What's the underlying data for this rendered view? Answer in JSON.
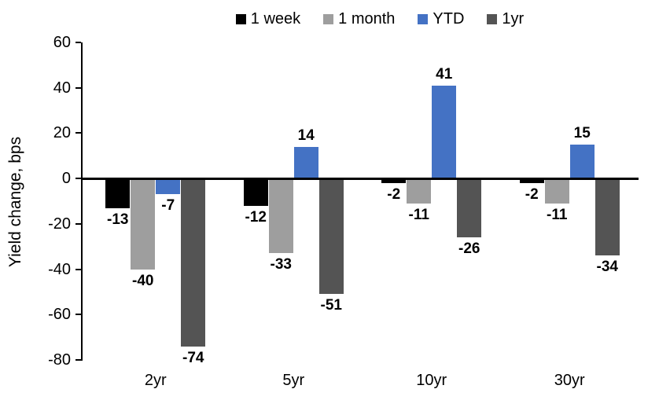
{
  "chart_data": {
    "type": "bar",
    "title": "",
    "ylabel": "Yield change, bps",
    "xlabel": "",
    "categories": [
      "2yr",
      "5yr",
      "10yr",
      "30yr"
    ],
    "series": [
      {
        "name": "1 week",
        "color": "#000000",
        "values": [
          -13,
          -12,
          -2,
          -2
        ]
      },
      {
        "name": "1 month",
        "color": "#9E9E9E",
        "values": [
          -40,
          -33,
          -11,
          -11
        ]
      },
      {
        "name": "YTD",
        "color": "#4472C4",
        "values": [
          -7,
          14,
          41,
          15
        ]
      },
      {
        "name": "1yr",
        "color": "#545454",
        "values": [
          -74,
          -51,
          -26,
          -34
        ]
      }
    ],
    "ylim": [
      -80,
      60
    ],
    "yticks": [
      60,
      40,
      20,
      0,
      -20,
      -40,
      -60,
      -80
    ],
    "grid": false,
    "legend_position": "top",
    "data_labels": true
  }
}
